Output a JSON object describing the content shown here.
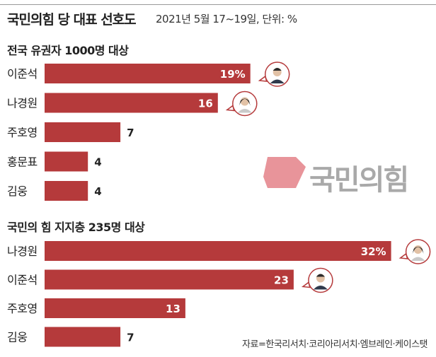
{
  "header": {
    "title": "국민의힘 당 대표 선호도",
    "subtitle": "2021년 5월 17~19일, 단위: %"
  },
  "logo": {
    "text": "국민의힘",
    "color": "#e8949a"
  },
  "source": "자료=한국리서치·코리아리서치·엠브레인·케이스탯",
  "colors": {
    "bar": "#b53a3b",
    "bar_label": "#ffffff",
    "value_text": "#222222"
  },
  "chart_data": [
    {
      "type": "bar",
      "orientation": "horizontal",
      "title": "전국 유권자 1000명 대상",
      "categories": [
        "이준석",
        "나경원",
        "주호영",
        "홍문표",
        "김웅"
      ],
      "values": [
        19,
        16,
        7,
        4,
        4
      ],
      "value_labels": [
        "19%",
        "16",
        "7",
        "4",
        "4"
      ],
      "portrait_markers": [
        "이준석",
        "나경원"
      ]
    },
    {
      "type": "bar",
      "orientation": "horizontal",
      "title": "국민의 힘 지지층 235명 대상",
      "categories": [
        "나경원",
        "이준석",
        "주호영",
        "김웅"
      ],
      "values": [
        32,
        23,
        13,
        7
      ],
      "value_labels": [
        "32%",
        "23",
        "13",
        "7"
      ],
      "portrait_markers": [
        "나경원",
        "이준석"
      ]
    }
  ]
}
